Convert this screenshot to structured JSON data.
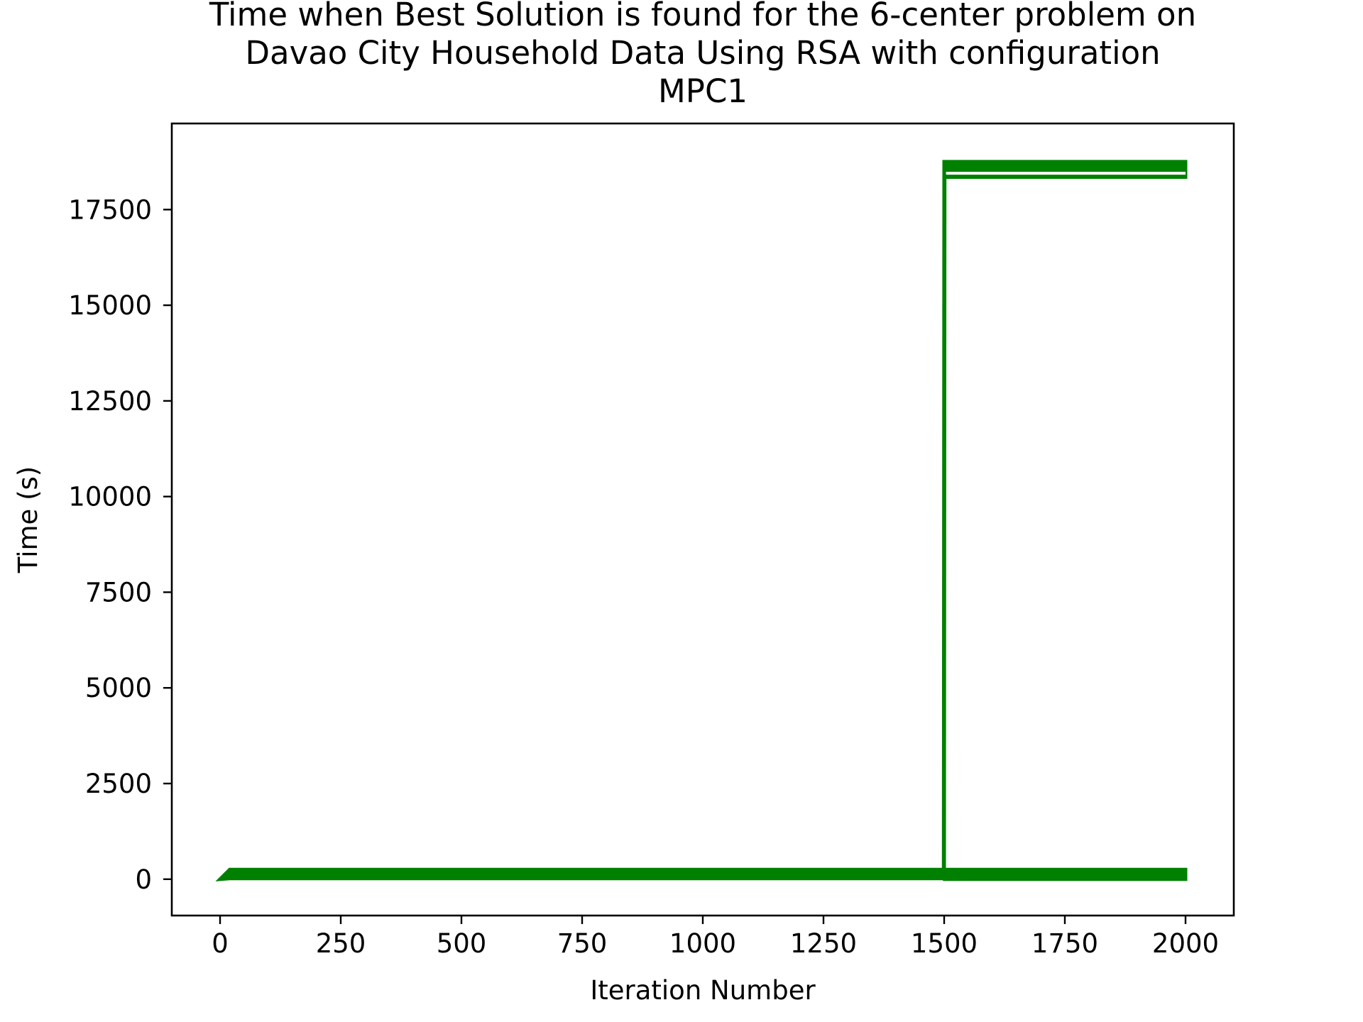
{
  "chart_data": {
    "type": "line",
    "title_lines": [
      "Time when Best Solution is found for the 6-center problem on",
      "Davao City Household Data Using RSA with configuration",
      "MPC1"
    ],
    "xlabel": "Iteration Number",
    "ylabel": "Time (s)",
    "xlim": [
      -100,
      2100
    ],
    "ylim": [
      -950,
      19750
    ],
    "xticks": [
      0,
      250,
      500,
      750,
      1000,
      1250,
      1500,
      1750,
      2000
    ],
    "xtick_labels": [
      "0",
      "250",
      "500",
      "750",
      "1000",
      "1250",
      "1500",
      "1750",
      "2000"
    ],
    "yticks": [
      0,
      2500,
      5000,
      7500,
      10000,
      12500,
      15000,
      17500
    ],
    "ytick_labels": [
      "0",
      "2500",
      "5000",
      "7500",
      "10000",
      "12500",
      "15000",
      "17500"
    ],
    "grid": false,
    "series_color": "#008000",
    "series": [
      {
        "x": [
          0,
          20,
          1499,
          1500,
          1501,
          2000
        ],
        "y_low": [
          0,
          20,
          20,
          20,
          18350,
          18350
        ],
        "y_high": [
          0,
          250,
          250,
          18750,
          18750,
          18750
        ]
      },
      {
        "x": [
          1501,
          2000
        ],
        "y_low": [
          0,
          0
        ],
        "y_high": [
          250,
          250
        ]
      }
    ]
  }
}
